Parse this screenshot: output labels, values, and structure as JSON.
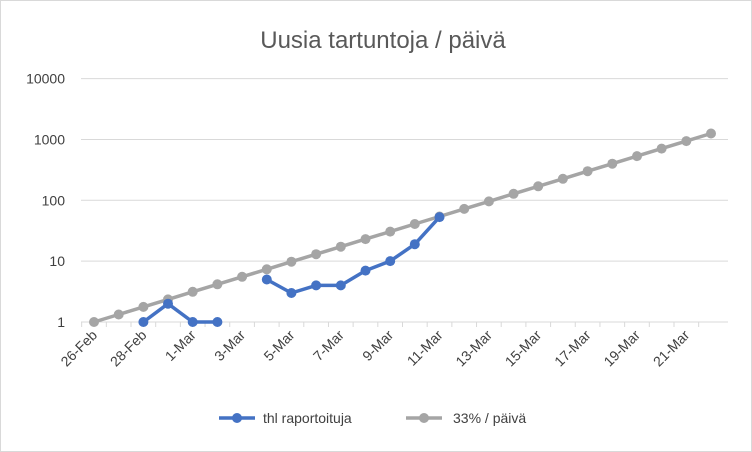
{
  "chart_data": {
    "type": "line",
    "title": "Uusia tartuntoja / päivä",
    "xlabel": "",
    "ylabel": "",
    "y_scale": "log",
    "ylim": [
      1,
      10000
    ],
    "y_ticks": [
      "1",
      "10",
      "100",
      "1000",
      "10000"
    ],
    "grid": true,
    "legend_position": "bottom",
    "categories": [
      "26-Feb",
      "27-Feb",
      "28-Feb",
      "29-Feb",
      "1-Mar",
      "2-Mar",
      "3-Mar",
      "4-Mar",
      "5-Mar",
      "6-Mar",
      "7-Mar",
      "8-Mar",
      "9-Mar",
      "10-Mar",
      "11-Mar",
      "12-Mar",
      "13-Mar",
      "14-Mar",
      "15-Mar",
      "16-Mar",
      "17-Mar",
      "18-Mar",
      "19-Mar",
      "20-Mar",
      "21-Mar",
      "22-Mar"
    ],
    "x_tick_labels": [
      "26-Feb",
      "28-Feb",
      "1-Mar",
      "3-Mar",
      "5-Mar",
      "7-Mar",
      "9-Mar",
      "11-Mar",
      "13-Mar",
      "15-Mar",
      "17-Mar",
      "19-Mar",
      "21-Mar"
    ],
    "series": [
      {
        "name": "thl raportoituja",
        "color": "#4472c4",
        "values": [
          null,
          null,
          1,
          2,
          1,
          1,
          null,
          5,
          3,
          4,
          4,
          7,
          10,
          19,
          53,
          null,
          null,
          null,
          null,
          null,
          null,
          null,
          null,
          null,
          null,
          null
        ]
      },
      {
        "name": "33% / päivä",
        "color": "#a5a5a5",
        "values": [
          1,
          1.33,
          1.77,
          2.35,
          3.13,
          4.16,
          5.53,
          7.36,
          9.79,
          13.0,
          17.3,
          23.0,
          30.6,
          40.8,
          54.2,
          72.1,
          95.9,
          128,
          170,
          226,
          301,
          400,
          532,
          708,
          941,
          1252
        ]
      }
    ]
  }
}
